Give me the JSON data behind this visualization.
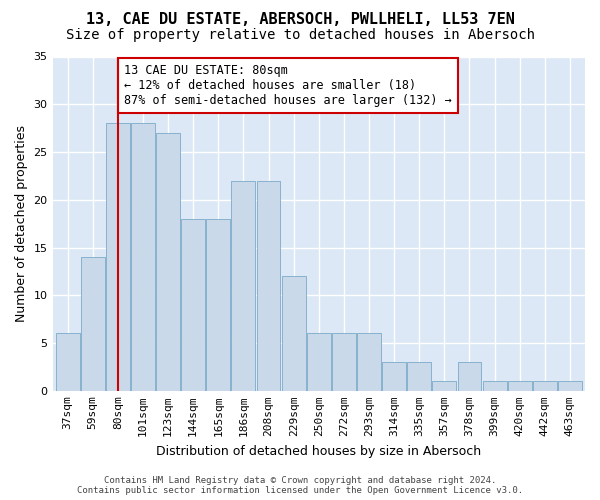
{
  "title": "13, CAE DU ESTATE, ABERSOCH, PWLLHELI, LL53 7EN",
  "subtitle": "Size of property relative to detached houses in Abersoch",
  "xlabel": "Distribution of detached houses by size in Abersoch",
  "ylabel": "Number of detached properties",
  "bar_values": [
    6,
    14,
    28,
    28,
    27,
    18,
    18,
    22,
    22,
    12,
    6,
    6,
    6,
    3,
    3,
    1,
    3,
    1,
    1,
    1,
    1
  ],
  "categories": [
    "37sqm",
    "59sqm",
    "80sqm",
    "101sqm",
    "123sqm",
    "144sqm",
    "165sqm",
    "186sqm",
    "208sqm",
    "229sqm",
    "250sqm",
    "272sqm",
    "293sqm",
    "314sqm",
    "335sqm",
    "357sqm",
    "378sqm",
    "399sqm",
    "420sqm",
    "442sqm",
    "463sqm"
  ],
  "bar_color": "#c9d9ea",
  "bar_edge_color": "#7aaac8",
  "vline_x": 2,
  "vline_color": "#cc0000",
  "annotation_text": "13 CAE DU ESTATE: 80sqm\n← 12% of detached houses are smaller (18)\n87% of semi-detached houses are larger (132) →",
  "annotation_box_color": "#ffffff",
  "annotation_box_edge": "#cc0000",
  "ylim": [
    0,
    35
  ],
  "yticks": [
    0,
    5,
    10,
    15,
    20,
    25,
    30,
    35
  ],
  "background_color": "#dce8f5",
  "grid_color": "#ffffff",
  "footer_line1": "Contains HM Land Registry data © Crown copyright and database right 2024.",
  "footer_line2": "Contains public sector information licensed under the Open Government Licence v3.0.",
  "title_fontsize": 11,
  "subtitle_fontsize": 10,
  "tick_fontsize": 8,
  "ylabel_fontsize": 9,
  "xlabel_fontsize": 9,
  "annotation_fontsize": 8.5
}
